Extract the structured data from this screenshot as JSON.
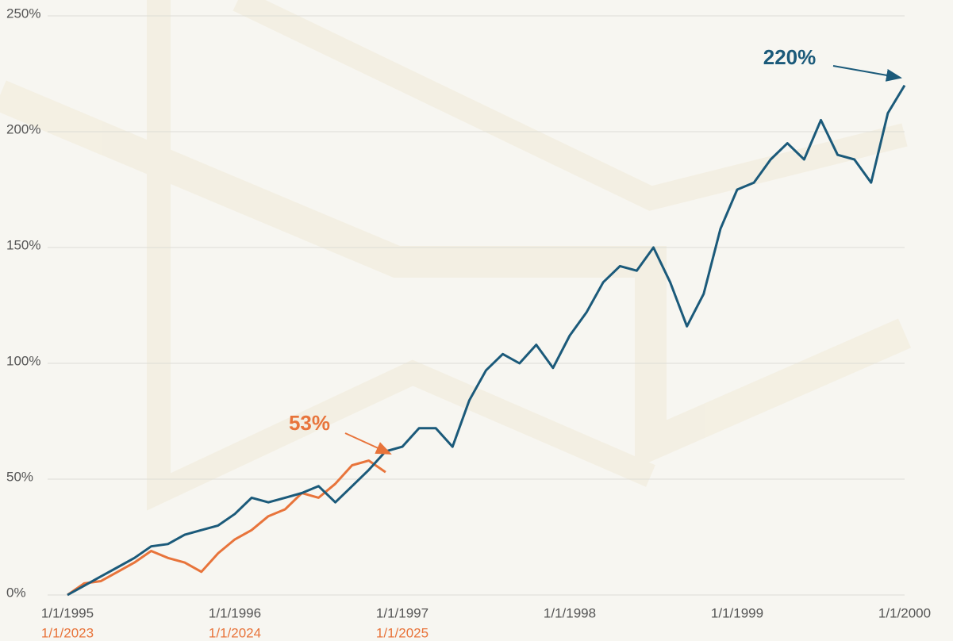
{
  "chart_data": {
    "type": "line",
    "categories": [
      "1/1/1995",
      null,
      null,
      null,
      null,
      null,
      null,
      null,
      null,
      null,
      "1/1/1996",
      null,
      null,
      null,
      null,
      null,
      null,
      null,
      null,
      null,
      "1/1/1997",
      null,
      null,
      null,
      null,
      null,
      null,
      null,
      null,
      null,
      "1/1/1998",
      null,
      null,
      null,
      null,
      null,
      null,
      null,
      null,
      null,
      "1/1/1999",
      null,
      null,
      null,
      null,
      null,
      null,
      null,
      null,
      null,
      "1/1/2000"
    ],
    "categories2": [
      "1/1/2023",
      null,
      null,
      null,
      null,
      null,
      null,
      null,
      null,
      null,
      "1/1/2024",
      null,
      null,
      null,
      null,
      null,
      null,
      null,
      null,
      null,
      "1/1/2025",
      null,
      null,
      null,
      null,
      null,
      null,
      null,
      null,
      null,
      null,
      null,
      null,
      null,
      null,
      null,
      null,
      null,
      null,
      null,
      null,
      null,
      null,
      null,
      null,
      null,
      null,
      null,
      null,
      null,
      null
    ],
    "series": [
      {
        "color": "#1b5a7a",
        "values": [
          0,
          4,
          8,
          12,
          16,
          21,
          22,
          26,
          28,
          30,
          35,
          42,
          40,
          42,
          44,
          47,
          40,
          47,
          54,
          62,
          64,
          72,
          72,
          64,
          84,
          97,
          104,
          100,
          108,
          98,
          112,
          122,
          135,
          142,
          140,
          150,
          135,
          116,
          130,
          158,
          175,
          178,
          188,
          195,
          188,
          205,
          190,
          188,
          178,
          208,
          220
        ]
      },
      {
        "color": "#e8743b",
        "values": [
          0,
          5,
          6,
          10,
          14,
          19,
          16,
          14,
          10,
          18,
          24,
          28,
          34,
          37,
          44,
          42,
          48,
          56,
          58,
          53,
          null,
          null,
          null,
          null,
          null,
          null,
          null,
          null,
          null,
          null,
          null,
          null,
          null,
          null,
          null,
          null,
          null,
          null,
          null,
          null,
          null,
          null,
          null,
          null,
          null,
          null,
          null,
          null,
          null,
          null,
          null
        ]
      }
    ],
    "annotations": [
      "220%",
      "53%"
    ],
    "ylim": [
      0,
      250
    ],
    "yticks": [
      {
        "value": 0,
        "label": "0%"
      },
      {
        "value": 50,
        "label": "50%"
      },
      {
        "value": 100,
        "label": "100%"
      },
      {
        "value": 150,
        "label": "150%"
      },
      {
        "value": 200,
        "label": "200%"
      },
      {
        "value": 250,
        "label": "250%"
      }
    ],
    "grid": true
  }
}
